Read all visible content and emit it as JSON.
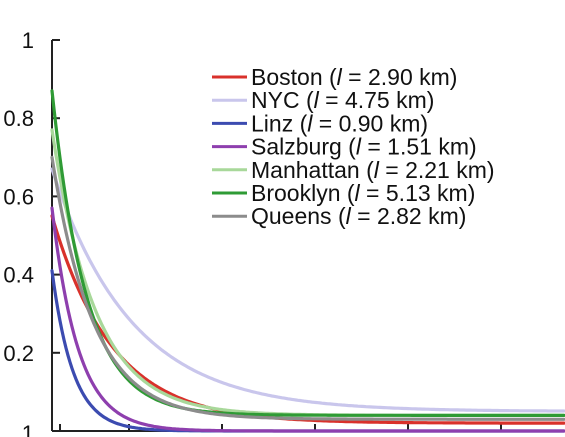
{
  "chart_data": {
    "type": "line",
    "title": "",
    "xlabel": "",
    "ylabel": "",
    "ylim": [
      0,
      1
    ],
    "y_ticks": [
      0.2,
      0.4,
      0.6,
      0.8,
      1
    ],
    "y_tick_labels": [
      "0.2",
      "0.4",
      "0.6",
      "0.8",
      "1"
    ],
    "bottom_tick_label": "1",
    "legend_position": "top-right",
    "grid": false,
    "series": [
      {
        "name": "Boston (l = 2.90 km)",
        "legend_parts": [
          "Boston (",
          "l",
          " = 2.90 km)"
        ],
        "color": "#d9312b",
        "y0": 0.55,
        "decay": 0.0165,
        "floor": 0.02
      },
      {
        "name": "NYC (l = 4.75 km)",
        "legend_parts": [
          "NYC (",
          "l",
          " = 4.75 km)"
        ],
        "color": "#c9c6ec",
        "y0": 0.67,
        "decay": 0.0125,
        "floor": 0.05
      },
      {
        "name": "Linz (l = 0.90 km)",
        "legend_parts": [
          "Linz (",
          "l",
          " = 0.90 km)"
        ],
        "color": "#3c4bb0",
        "y0": 0.41,
        "decay": 0.047,
        "floor": 0.0
      },
      {
        "name": "Salzburg (l = 1.51 km)",
        "legend_parts": [
          "Salzburg (",
          "l",
          " = 1.51 km)"
        ],
        "color": "#8e3fae",
        "y0": 0.57,
        "decay": 0.038,
        "floor": 0.0
      },
      {
        "name": "Manhattan (l = 2.21 km)",
        "legend_parts": [
          "Manhattan (",
          "l",
          " = 2.21 km)"
        ],
        "color": "#a8d89a",
        "y0": 0.77,
        "decay": 0.023,
        "floor": 0.04
      },
      {
        "name": "Brooklyn (l = 5.13 km)",
        "legend_parts": [
          "Brooklyn (",
          "l",
          " = 5.13 km)"
        ],
        "color": "#2f9b35",
        "y0": 0.87,
        "decay": 0.029,
        "floor": 0.04
      },
      {
        "name": "Queens (l = 2.82 km)",
        "legend_parts": [
          "Queens (",
          "l",
          " = 2.82 km)"
        ],
        "color": "#8c8c8c",
        "y0": 0.7,
        "decay": 0.024,
        "floor": 0.03
      }
    ]
  }
}
